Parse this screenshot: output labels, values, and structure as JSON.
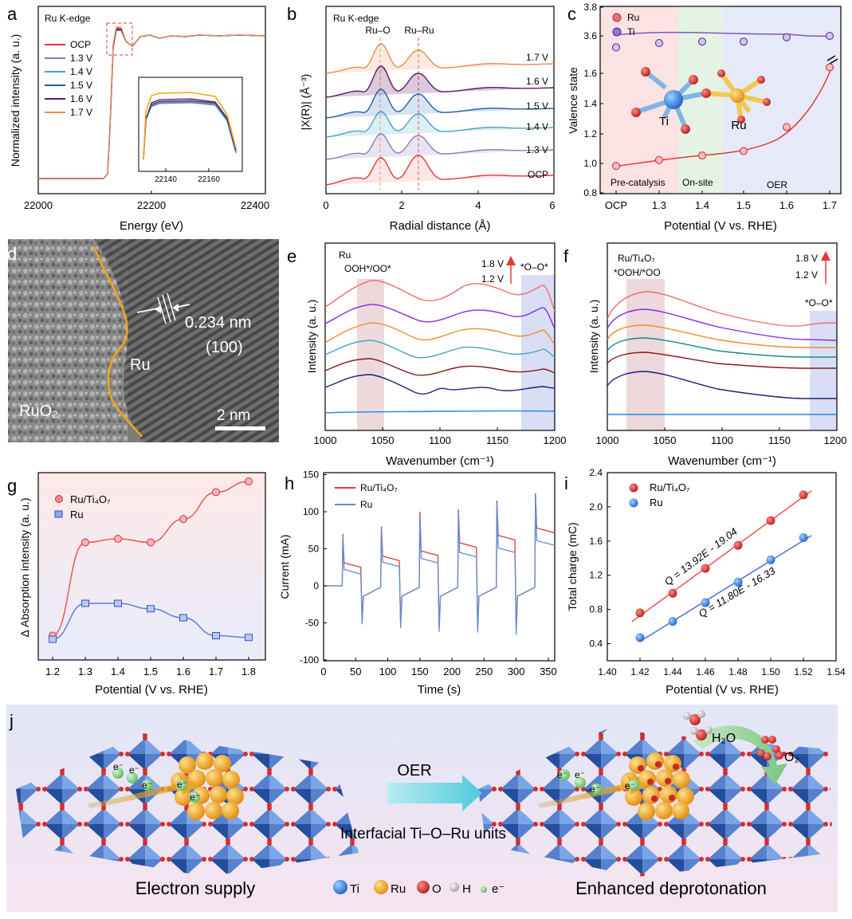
{
  "panels": {
    "a": {
      "letter": "a",
      "label": "Ru K-edge",
      "xlabel": "Energy (eV)",
      "ylabel": "Normalized intensity (a. u.)",
      "xticks": [
        "22000",
        "22200",
        "22400"
      ],
      "legend": [
        "OCP",
        "1.3 V",
        "1.4 V",
        "1.5 V",
        "1.6 V",
        "1.7 V"
      ],
      "inset_ticks": [
        "22140",
        "22160"
      ]
    },
    "b": {
      "letter": "b",
      "label": "Ru K-edge",
      "xlabel": "Radial distance (Å)",
      "ylabel": "|X(R)| (Å⁻³)",
      "xticks": [
        "0",
        "2",
        "4",
        "6"
      ],
      "peaks": [
        "Ru–O",
        "Ru–Ru"
      ],
      "curves": [
        "1.7 V",
        "1.6 V",
        "1.5 V",
        "1.4 V",
        "1.3 V",
        "OCP"
      ]
    },
    "c": {
      "letter": "c",
      "xlabel": "Potential (V vs. RHE)",
      "ylabel": "Valence state",
      "xticks": [
        "OCP",
        "1.3",
        "1.4",
        "1.5",
        "1.6",
        "1.7"
      ],
      "yticks_top": [
        "3.6",
        "3.8"
      ],
      "yticks_bottom": [
        "0.8",
        "1.0",
        "1.2",
        "1.4",
        "1.6"
      ],
      "legend": [
        "Ru",
        "Ti"
      ],
      "regions": [
        "Pre-catalysis",
        "On-site",
        "OER"
      ],
      "atoms": [
        "Ti",
        "Ru"
      ]
    },
    "d": {
      "letter": "d",
      "spacing": "0.234 nm",
      "plane": "(100)",
      "ru": "Ru",
      "ruo2": "RuO₂",
      "scale": "2 nm"
    },
    "e": {
      "letter": "e",
      "xlabel": "Wavenumber (cm⁻¹)",
      "ylabel": "Intensity (a. u.)",
      "xticks": [
        "1000",
        "1050",
        "1100",
        "1150",
        "1200"
      ],
      "name": "Ru",
      "band1": "OOH*/OO*",
      "band2": "*O–O*",
      "v_high": "1.8 V",
      "v_low": "1.2 V"
    },
    "f": {
      "letter": "f",
      "xlabel": "Wavenumber (cm⁻¹)",
      "ylabel": "Intensity (a. u.)",
      "xticks": [
        "1000",
        "1050",
        "1100",
        "1150",
        "1200"
      ],
      "name": "Ru/Ti₄O₇",
      "band1": "*OOH/*OO",
      "band2": "*O–O*",
      "v_high": "1.8 V",
      "v_low": "1.2 V"
    },
    "g": {
      "letter": "g",
      "xlabel": "Potential (V vs. RHE)",
      "ylabel": "Δ Absorption intensity (a. u.)",
      "xticks": [
        "1.2",
        "1.3",
        "1.4",
        "1.5",
        "1.6",
        "1.7",
        "1.8"
      ],
      "legend": [
        "Ru/Ti₄O₇",
        "Ru"
      ]
    },
    "h": {
      "letter": "h",
      "xlabel": "Time (s)",
      "ylabel": "Current (mA)",
      "xticks": [
        "0",
        "50",
        "100",
        "150",
        "200",
        "250",
        "300",
        "350"
      ],
      "yticks": [
        "-100",
        "-50",
        "0",
        "50",
        "100",
        "150"
      ],
      "legend": [
        "Ru/Ti₄O₇",
        "Ru"
      ]
    },
    "i": {
      "letter": "i",
      "xlabel": "Potential (V vs. RHE)",
      "ylabel": "Total charge (mC)",
      "xticks": [
        "1.40",
        "1.42",
        "1.44",
        "1.46",
        "1.48",
        "1.50",
        "1.52",
        "1.54"
      ],
      "yticks": [
        "0.4",
        "0.8",
        "1.2",
        "1.6",
        "2.0",
        "2.4"
      ],
      "legend": [
        "Ru/Ti₄O₇",
        "Ru"
      ],
      "fit1": "Q = 13.92E - 19.04",
      "fit2": "Q = 11.80E - 16.33"
    },
    "j": {
      "letter": "j",
      "oer": "OER",
      "interfacial": "Interfacial Ti–O–Ru units",
      "left": "Electron supply",
      "right": "Enhanced deprotonation",
      "h2o": "H₂O",
      "o2": "O₂",
      "legend": [
        "Ti",
        "Ru",
        "O",
        "H",
        "e⁻"
      ]
    }
  },
  "chart_data": [
    {
      "type": "line",
      "id": "c",
      "series": [
        {
          "name": "Ru",
          "x": [
            "OCP",
            "1.3",
            "1.4",
            "1.5",
            "1.6",
            "1.7"
          ],
          "values": [
            0.98,
            1.02,
            1.05,
            1.08,
            1.24,
            1.64
          ]
        },
        {
          "name": "Ti",
          "x": [
            "OCP",
            "1.3",
            "1.4",
            "1.5",
            "1.6",
            "1.7"
          ],
          "values": [
            3.52,
            3.55,
            3.56,
            3.56,
            3.59,
            3.6
          ]
        }
      ]
    },
    {
      "type": "line",
      "id": "g",
      "x": [
        1.2,
        1.3,
        1.4,
        1.5,
        1.6,
        1.7,
        1.8
      ],
      "ylim": [
        0,
        1
      ],
      "series": [
        {
          "name": "Ru/Ti₄O₇",
          "values": [
            0.1,
            0.62,
            0.64,
            0.62,
            0.75,
            0.9,
            0.96
          ]
        },
        {
          "name": "Ru",
          "values": [
            0.08,
            0.28,
            0.28,
            0.25,
            0.2,
            0.1,
            0.09
          ]
        }
      ]
    },
    {
      "type": "line",
      "id": "h",
      "xlim": [
        0,
        360
      ],
      "ylim": [
        -100,
        150
      ],
      "steps": [
        30,
        90,
        150,
        210,
        270,
        330
      ],
      "series": [
        {
          "name": "Ru/Ti₄O₇",
          "plateau": [
            25,
            34,
            41,
            52,
            62,
            72
          ],
          "spike": [
            70,
            80,
            100,
            103,
            115,
            125
          ]
        },
        {
          "name": "Ru",
          "plateau": [
            16,
            26,
            31,
            39,
            45,
            55
          ],
          "dip": [
            -52,
            -57,
            -62,
            -63,
            -66,
            -68
          ]
        }
      ]
    },
    {
      "type": "scatter",
      "id": "i",
      "x": [
        1.42,
        1.44,
        1.46,
        1.48,
        1.5,
        1.52
      ],
      "xlim": [
        1.4,
        1.54
      ],
      "ylim": [
        0.2,
        2.4
      ],
      "series": [
        {
          "name": "Ru/Ti₄O₇",
          "values": [
            0.76,
            0.99,
            1.28,
            1.55,
            1.84,
            2.14
          ],
          "slope": 13.92,
          "intercept": -19.04
        },
        {
          "name": "Ru",
          "values": [
            0.47,
            0.66,
            0.88,
            1.12,
            1.38,
            1.64
          ],
          "slope": 11.8,
          "intercept": -16.33
        }
      ]
    }
  ]
}
